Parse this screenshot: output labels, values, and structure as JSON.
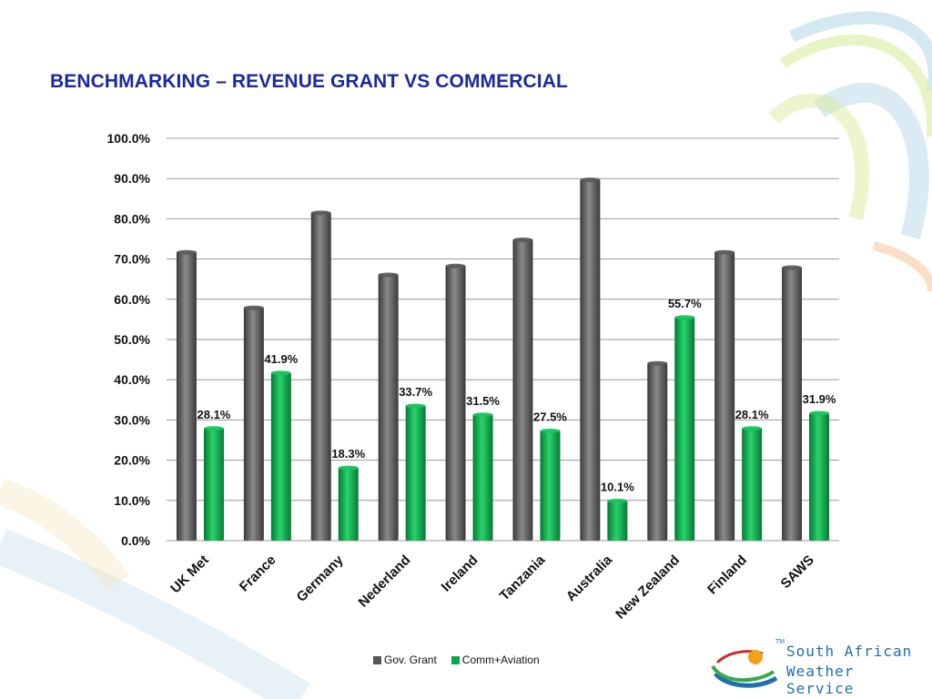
{
  "slide": {
    "title": "BENCHMARKING – REVENUE GRANT VS COMMERCIAL"
  },
  "logo": {
    "line1": "South African",
    "line2": "Weather Service",
    "trademark": "TM"
  },
  "colors": {
    "gov_grant": "#5a5a5a",
    "comm_aviation": "#0aa84a",
    "gridline": "#9a9a9a",
    "title": "#1a2a9c"
  },
  "chart_data": {
    "type": "bar",
    "title": "",
    "xlabel": "",
    "ylabel": "",
    "ylim": [
      0,
      100
    ],
    "y_ticks": [
      "0.0%",
      "10.0%",
      "20.0%",
      "30.0%",
      "40.0%",
      "50.0%",
      "60.0%",
      "70.0%",
      "80.0%",
      "90.0%",
      "100.0%"
    ],
    "grid": true,
    "legend_position": "bottom",
    "categories": [
      "UK Met",
      "France",
      "Germany",
      "Nederland",
      "Ireland",
      "Tanzania",
      "Australia",
      "New Zealand",
      "Finland",
      "SAWS"
    ],
    "series": [
      {
        "name": "Gov. Grant",
        "values": [
          71.9,
          58.1,
          81.7,
          66.3,
          68.5,
          75.0,
          89.9,
          44.3,
          71.9,
          68.1
        ],
        "data_labels": []
      },
      {
        "name": "Comm+Aviation",
        "values": [
          28.1,
          41.9,
          18.3,
          33.7,
          31.5,
          27.5,
          10.1,
          55.7,
          28.1,
          31.9
        ],
        "data_labels": [
          "28.1%",
          "41.9%",
          "18.3%",
          "33.7%",
          "31.5%",
          "27.5%",
          "10.1%",
          "55.7%",
          "28.1%",
          "31.9%"
        ]
      }
    ]
  }
}
